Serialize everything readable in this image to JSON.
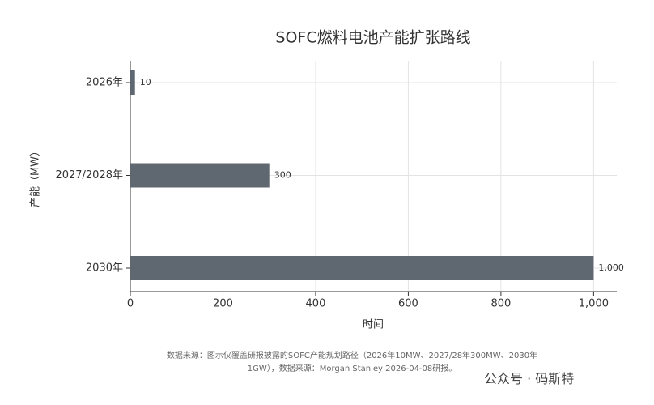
{
  "chart_data": {
    "type": "hbar",
    "title": "SOFC燃料电池产能扩张路线",
    "x_label": "时间",
    "y_label": "产能（MW）",
    "categories": [
      "2026年",
      "2027/2028年",
      "2030年"
    ],
    "values": [
      10,
      300,
      1000
    ],
    "value_labels": [
      "10",
      "300",
      "1,000"
    ],
    "color": "#5f6770",
    "xlim": [
      0,
      1050
    ],
    "xticks": [
      0,
      200,
      400,
      600,
      800,
      {
        "value": 1000,
        "label": "1,000"
      }
    ],
    "grid": true,
    "footnote": "数据来源：图示仅覆盖研报披露的SOFC产能规划路径（2026年10MW、2027/28年300MW、2030年1GW），数据来源：Morgan Stanley 2026-04-08研报。",
    "watermark": "公众号 · 码斯特"
  }
}
